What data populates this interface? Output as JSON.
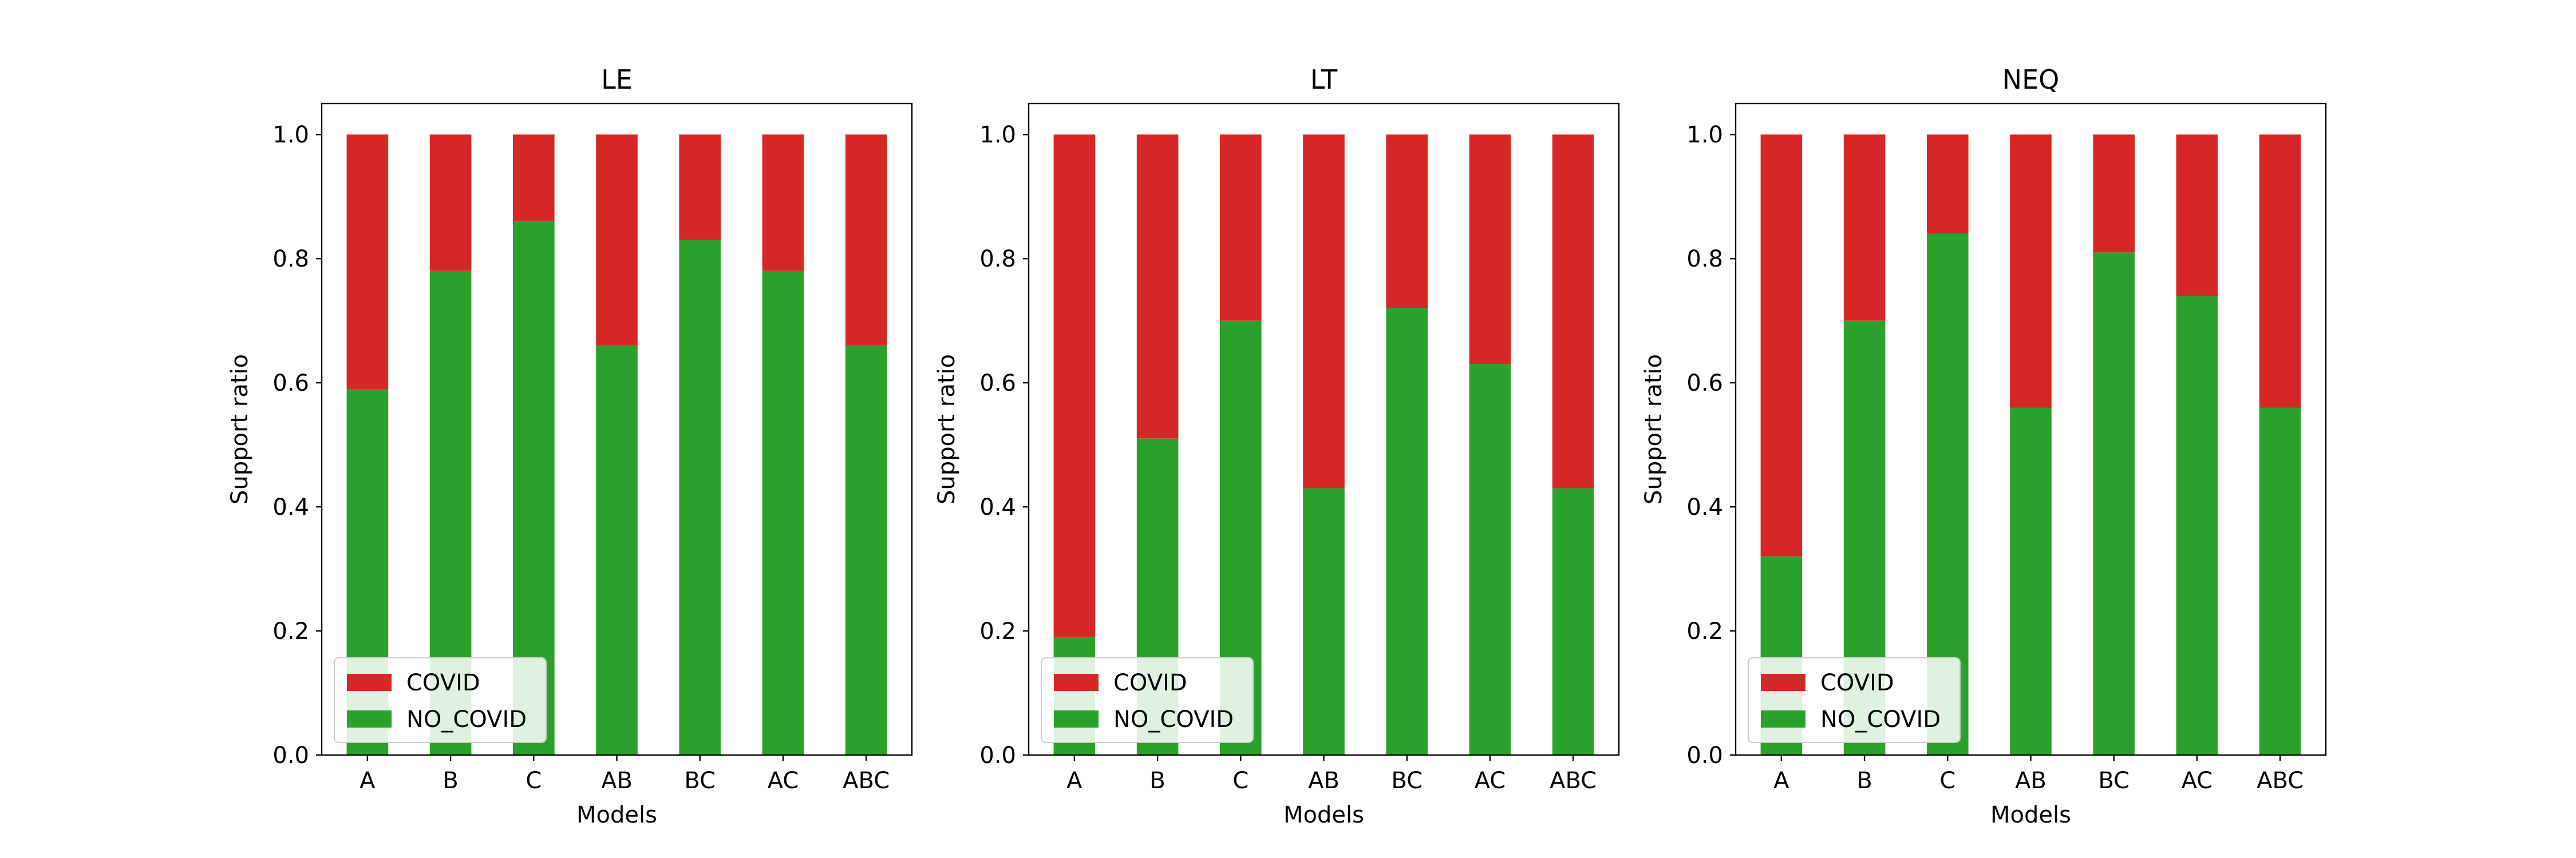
{
  "chart_data": [
    {
      "type": "bar",
      "stacked": true,
      "title": "LE",
      "xlabel": "Models",
      "ylabel": "Support ratio",
      "ylim": [
        0,
        1.05
      ],
      "yticks": [
        "0.0",
        "0.2",
        "0.4",
        "0.6",
        "0.8",
        "1.0"
      ],
      "categories": [
        "A",
        "B",
        "C",
        "AB",
        "BC",
        "AC",
        "ABC"
      ],
      "series": [
        {
          "name": "NO_COVID",
          "color": "#2ca02c",
          "values": [
            0.59,
            0.78,
            0.86,
            0.66,
            0.83,
            0.78,
            0.66
          ]
        },
        {
          "name": "COVID",
          "color": "#d62728",
          "values": [
            0.41,
            0.22,
            0.14,
            0.34,
            0.17,
            0.22,
            0.34
          ]
        }
      ],
      "legend": {
        "location": "lower-left",
        "entries": [
          "COVID",
          "NO_COVID"
        ]
      }
    },
    {
      "type": "bar",
      "stacked": true,
      "title": "LT",
      "xlabel": "Models",
      "ylabel": "Support ratio",
      "ylim": [
        0,
        1.05
      ],
      "yticks": [
        "0.0",
        "0.2",
        "0.4",
        "0.6",
        "0.8",
        "1.0"
      ],
      "categories": [
        "A",
        "B",
        "C",
        "AB",
        "BC",
        "AC",
        "ABC"
      ],
      "series": [
        {
          "name": "NO_COVID",
          "color": "#2ca02c",
          "values": [
            0.19,
            0.51,
            0.7,
            0.43,
            0.72,
            0.63,
            0.43
          ]
        },
        {
          "name": "COVID",
          "color": "#d62728",
          "values": [
            0.81,
            0.49,
            0.3,
            0.57,
            0.28,
            0.37,
            0.57
          ]
        }
      ],
      "legend": {
        "location": "lower-left",
        "entries": [
          "COVID",
          "NO_COVID"
        ]
      }
    },
    {
      "type": "bar",
      "stacked": true,
      "title": "NEQ",
      "xlabel": "Models",
      "ylabel": "Support ratio",
      "ylim": [
        0,
        1.05
      ],
      "yticks": [
        "0.0",
        "0.2",
        "0.4",
        "0.6",
        "0.8",
        "1.0"
      ],
      "categories": [
        "A",
        "B",
        "C",
        "AB",
        "BC",
        "AC",
        "ABC"
      ],
      "series": [
        {
          "name": "NO_COVID",
          "color": "#2ca02c",
          "values": [
            0.32,
            0.7,
            0.84,
            0.56,
            0.81,
            0.74,
            0.56
          ]
        },
        {
          "name": "COVID",
          "color": "#d62728",
          "values": [
            0.68,
            0.3,
            0.16,
            0.44,
            0.19,
            0.26,
            0.44
          ]
        }
      ],
      "legend": {
        "location": "lower-left",
        "entries": [
          "COVID",
          "NO_COVID"
        ]
      }
    }
  ]
}
